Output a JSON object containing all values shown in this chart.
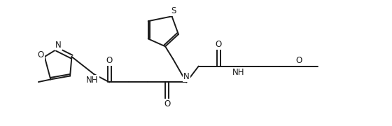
{
  "bg_color": "#ffffff",
  "line_color": "#1a1a1a",
  "line_width": 1.4,
  "font_size": 8.5,
  "figsize": [
    5.6,
    1.8
  ],
  "dpi": 100,
  "xlim": [
    0,
    11.2
  ],
  "ylim": [
    -0.3,
    3.6
  ]
}
